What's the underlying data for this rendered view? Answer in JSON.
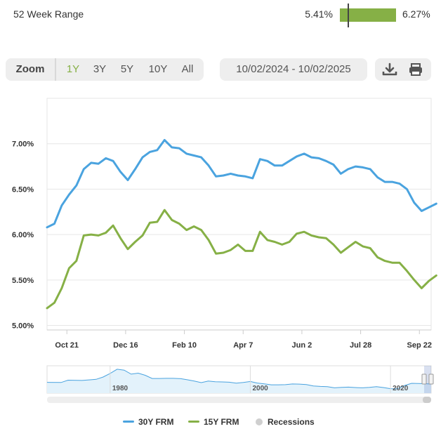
{
  "range": {
    "label": "52 Week Range",
    "low": "5.41%",
    "high": "6.27%",
    "current_fraction": 0.15
  },
  "zoom": {
    "label": "Zoom",
    "buttons": [
      "1Y",
      "3Y",
      "5Y",
      "10Y",
      "All"
    ],
    "active": "1Y"
  },
  "date_range": "10/02/2024 - 10/02/2025",
  "toolbar": {
    "download_icon": "download-icon",
    "print_icon": "print-icon"
  },
  "colors": {
    "frm30": "#4aa3df",
    "frm15": "#86b046",
    "recession": "#cfcfcf"
  },
  "chart_data": {
    "type": "line",
    "x_ticks": [
      {
        "label": "Oct 21",
        "week": 2.7
      },
      {
        "label": "Dec 16",
        "week": 10.7
      },
      {
        "label": "Feb 10",
        "week": 18.7
      },
      {
        "label": "Apr 7",
        "week": 26.7
      },
      {
        "label": "Jun 2",
        "week": 34.7
      },
      {
        "label": "Jul 28",
        "week": 42.7
      },
      {
        "label": "Sep 22",
        "week": 50.7
      }
    ],
    "y_ticks": [
      {
        "label": "5.00%",
        "value": 5.0
      },
      {
        "label": "5.50%",
        "value": 5.5
      },
      {
        "label": "6.00%",
        "value": 6.0
      },
      {
        "label": "6.50%",
        "value": 6.5
      },
      {
        "label": "7.00%",
        "value": 7.0
      }
    ],
    "ylim": [
      4.95,
      7.5
    ],
    "xlim": [
      0,
      52.3
    ],
    "series": [
      {
        "name": "30Y FRM",
        "values": [
          6.08,
          6.12,
          6.32,
          6.44,
          6.54,
          6.72,
          6.79,
          6.78,
          6.84,
          6.81,
          6.69,
          6.6,
          6.72,
          6.85,
          6.91,
          6.93,
          7.04,
          6.96,
          6.95,
          6.89,
          6.87,
          6.85,
          6.76,
          6.64,
          6.65,
          6.67,
          6.65,
          6.64,
          6.62,
          6.83,
          6.81,
          6.76,
          6.76,
          6.81,
          6.86,
          6.89,
          6.85,
          6.84,
          6.81,
          6.77,
          6.67,
          6.72,
          6.75,
          6.74,
          6.72,
          6.63,
          6.58,
          6.58,
          6.56,
          6.5,
          6.35,
          6.26,
          6.3,
          6.34
        ]
      },
      {
        "name": "15Y FRM",
        "values": [
          5.19,
          5.25,
          5.41,
          5.63,
          5.71,
          5.99,
          6.0,
          5.99,
          6.02,
          6.1,
          5.96,
          5.84,
          5.92,
          5.99,
          6.13,
          6.14,
          6.27,
          6.16,
          6.12,
          6.05,
          6.09,
          6.05,
          5.94,
          5.79,
          5.8,
          5.83,
          5.89,
          5.82,
          5.82,
          6.03,
          5.94,
          5.92,
          5.89,
          5.92,
          6.01,
          6.03,
          5.99,
          5.97,
          5.96,
          5.89,
          5.8,
          5.86,
          5.92,
          5.87,
          5.85,
          5.75,
          5.71,
          5.69,
          5.69,
          5.6,
          5.5,
          5.41,
          5.49,
          5.55
        ]
      }
    ],
    "legend": [
      {
        "name": "30Y FRM"
      },
      {
        "name": "15Y FRM"
      },
      {
        "name": "Recessions"
      }
    ],
    "legend_position": "bottom",
    "grid": true,
    "navigator": {
      "year_labels": [
        {
          "label": "1980",
          "year": 1980
        },
        {
          "label": "2000",
          "year": 2000
        },
        {
          "label": "2020",
          "year": 2020
        }
      ],
      "year_range": [
        1971,
        2025.8
      ],
      "history": [
        {
          "year": 1971,
          "value": 7.5
        },
        {
          "year": 1973,
          "value": 7.4
        },
        {
          "year": 1974,
          "value": 9.0
        },
        {
          "year": 1976,
          "value": 8.8
        },
        {
          "year": 1978,
          "value": 9.6
        },
        {
          "year": 1979,
          "value": 11.2
        },
        {
          "year": 1980,
          "value": 13.7
        },
        {
          "year": 1981,
          "value": 16.6
        },
        {
          "year": 1982,
          "value": 16.0
        },
        {
          "year": 1983,
          "value": 13.2
        },
        {
          "year": 1984,
          "value": 13.9
        },
        {
          "year": 1985,
          "value": 12.4
        },
        {
          "year": 1986,
          "value": 10.2
        },
        {
          "year": 1987,
          "value": 10.2
        },
        {
          "year": 1988,
          "value": 10.3
        },
        {
          "year": 1989,
          "value": 10.3
        },
        {
          "year": 1990,
          "value": 10.1
        },
        {
          "year": 1991,
          "value": 9.3
        },
        {
          "year": 1992,
          "value": 8.4
        },
        {
          "year": 1993,
          "value": 7.3
        },
        {
          "year": 1994,
          "value": 8.4
        },
        {
          "year": 1995,
          "value": 7.9
        },
        {
          "year": 1996,
          "value": 7.8
        },
        {
          "year": 1997,
          "value": 7.6
        },
        {
          "year": 1998,
          "value": 6.9
        },
        {
          "year": 1999,
          "value": 7.4
        },
        {
          "year": 2000,
          "value": 8.1
        },
        {
          "year": 2001,
          "value": 7.0
        },
        {
          "year": 2002,
          "value": 6.5
        },
        {
          "year": 2003,
          "value": 5.8
        },
        {
          "year": 2004,
          "value": 5.8
        },
        {
          "year": 2005,
          "value": 5.9
        },
        {
          "year": 2006,
          "value": 6.4
        },
        {
          "year": 2007,
          "value": 6.3
        },
        {
          "year": 2008,
          "value": 6.0
        },
        {
          "year": 2009,
          "value": 5.0
        },
        {
          "year": 2010,
          "value": 4.7
        },
        {
          "year": 2011,
          "value": 4.5
        },
        {
          "year": 2012,
          "value": 3.7
        },
        {
          "year": 2013,
          "value": 4.0
        },
        {
          "year": 2014,
          "value": 4.2
        },
        {
          "year": 2015,
          "value": 3.9
        },
        {
          "year": 2016,
          "value": 3.7
        },
        {
          "year": 2017,
          "value": 4.0
        },
        {
          "year": 2018,
          "value": 4.5
        },
        {
          "year": 2019,
          "value": 3.9
        },
        {
          "year": 2020,
          "value": 3.1
        },
        {
          "year": 2021,
          "value": 3.0
        },
        {
          "year": 2022,
          "value": 5.3
        },
        {
          "year": 2023,
          "value": 6.8
        },
        {
          "year": 2024,
          "value": 6.7
        },
        {
          "year": 2025,
          "value": 6.6
        },
        {
          "year": 2025.8,
          "value": 6.3
        }
      ],
      "ylim": [
        0,
        19
      ]
    }
  }
}
